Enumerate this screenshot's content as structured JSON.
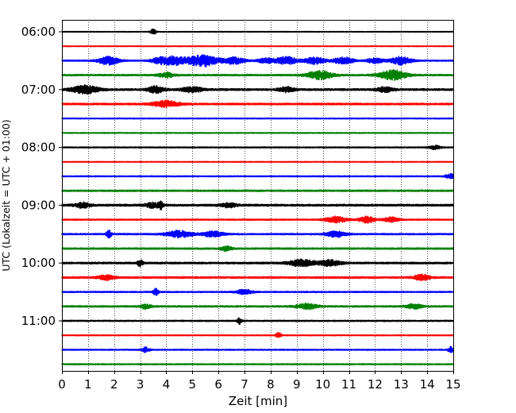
{
  "chart_data": {
    "type": "line",
    "title": "",
    "xlabel": "Zeit  [min]",
    "ylabel": "UTC (Lokalzeit = UTC + 01:00)",
    "xlim": [
      0,
      15
    ],
    "x_ticks": [
      "0",
      "1",
      "2",
      "3",
      "4",
      "5",
      "6",
      "7",
      "8",
      "9",
      "10",
      "11",
      "12",
      "13",
      "14",
      "15"
    ],
    "y_tick_labels": [
      "06:00",
      "07:00",
      "08:00",
      "09:00",
      "10:00",
      "11:00"
    ],
    "trace_interval_minutes": 15,
    "trace_start": "06:00",
    "trace_count": 24,
    "color_cycle": [
      "#000000",
      "#ff0000",
      "#0000ff",
      "#008000"
    ],
    "grid": {
      "x": true,
      "style": "dotted"
    },
    "traces": [
      {
        "time": "06:00",
        "color": "#000000",
        "noise": 0.5,
        "events": [
          {
            "t": 3.5,
            "amp": 3.5,
            "dur": 0.1
          }
        ]
      },
      {
        "time": "06:15",
        "color": "#ff0000",
        "noise": 0.5,
        "events": []
      },
      {
        "time": "06:30",
        "color": "#0000ff",
        "noise": 0.8,
        "events": [
          {
            "t": 1.8,
            "amp": 5,
            "dur": 0.4
          },
          {
            "t": 3.7,
            "amp": 3,
            "dur": 0.3
          },
          {
            "t": 4.3,
            "amp": 5,
            "dur": 0.5
          },
          {
            "t": 5.4,
            "amp": 7,
            "dur": 0.6
          },
          {
            "t": 6.6,
            "amp": 4,
            "dur": 0.4
          },
          {
            "t": 7.8,
            "amp": 3,
            "dur": 0.3
          },
          {
            "t": 8.6,
            "amp": 5,
            "dur": 0.4
          },
          {
            "t": 9.7,
            "amp": 4,
            "dur": 0.4
          },
          {
            "t": 10.8,
            "amp": 4,
            "dur": 0.4
          },
          {
            "t": 12.0,
            "amp": 3,
            "dur": 0.3
          },
          {
            "t": 13.0,
            "amp": 5,
            "dur": 0.4
          }
        ]
      },
      {
        "time": "06:45",
        "color": "#008000",
        "noise": 1.0,
        "events": [
          {
            "t": 4.0,
            "amp": 3,
            "dur": 0.3
          },
          {
            "t": 9.9,
            "amp": 5,
            "dur": 0.5
          },
          {
            "t": 12.7,
            "amp": 6,
            "dur": 0.5
          }
        ]
      },
      {
        "time": "07:00",
        "color": "#000000",
        "noise": 1.2,
        "events": [
          {
            "t": 0.9,
            "amp": 5,
            "dur": 0.5
          },
          {
            "t": 3.6,
            "amp": 4,
            "dur": 0.3
          },
          {
            "t": 5.0,
            "amp": 3,
            "dur": 0.4
          },
          {
            "t": 8.6,
            "amp": 3,
            "dur": 0.3
          },
          {
            "t": 12.4,
            "amp": 3,
            "dur": 0.3
          }
        ]
      },
      {
        "time": "07:15",
        "color": "#ff0000",
        "noise": 1.1,
        "events": [
          {
            "t": 4.0,
            "amp": 4,
            "dur": 0.5
          }
        ]
      },
      {
        "time": "07:30",
        "color": "#0000ff",
        "noise": 0.6,
        "events": []
      },
      {
        "time": "07:45",
        "color": "#008000",
        "noise": 0.6,
        "events": []
      },
      {
        "time": "08:00",
        "color": "#000000",
        "noise": 0.7,
        "events": [
          {
            "t": 14.3,
            "amp": 2.5,
            "dur": 0.2
          }
        ]
      },
      {
        "time": "08:15",
        "color": "#ff0000",
        "noise": 0.5,
        "events": []
      },
      {
        "time": "08:30",
        "color": "#0000ff",
        "noise": 0.7,
        "events": [
          {
            "t": 14.9,
            "amp": 3,
            "dur": 0.2
          }
        ]
      },
      {
        "time": "08:45",
        "color": "#008000",
        "noise": 1.0,
        "events": []
      },
      {
        "time": "09:00",
        "color": "#000000",
        "noise": 1.2,
        "events": [
          {
            "t": 0.8,
            "amp": 3,
            "dur": 0.3
          },
          {
            "t": 3.5,
            "amp": 3,
            "dur": 0.3
          },
          {
            "t": 3.8,
            "amp": 4.5,
            "dur": 0.08
          },
          {
            "t": 6.4,
            "amp": 2.5,
            "dur": 0.3
          }
        ]
      },
      {
        "time": "09:15",
        "color": "#ff0000",
        "noise": 0.8,
        "events": [
          {
            "t": 10.5,
            "amp": 4,
            "dur": 0.4
          },
          {
            "t": 11.7,
            "amp": 4,
            "dur": 0.3
          },
          {
            "t": 12.6,
            "amp": 3,
            "dur": 0.3
          }
        ]
      },
      {
        "time": "09:30",
        "color": "#0000ff",
        "noise": 0.9,
        "events": [
          {
            "t": 1.8,
            "amp": 4.5,
            "dur": 0.1
          },
          {
            "t": 4.5,
            "amp": 4,
            "dur": 0.5
          },
          {
            "t": 5.8,
            "amp": 3.5,
            "dur": 0.4
          },
          {
            "t": 10.5,
            "amp": 3.5,
            "dur": 0.4
          }
        ]
      },
      {
        "time": "09:45",
        "color": "#008000",
        "noise": 1.0,
        "events": [
          {
            "t": 6.3,
            "amp": 3,
            "dur": 0.2
          }
        ]
      },
      {
        "time": "10:00",
        "color": "#000000",
        "noise": 1.1,
        "events": [
          {
            "t": 3.0,
            "amp": 4,
            "dur": 0.1
          },
          {
            "t": 9.2,
            "amp": 4,
            "dur": 0.5
          },
          {
            "t": 10.3,
            "amp": 3.5,
            "dur": 0.4
          }
        ]
      },
      {
        "time": "10:15",
        "color": "#ff0000",
        "noise": 1.1,
        "events": [
          {
            "t": 1.7,
            "amp": 3,
            "dur": 0.3
          },
          {
            "t": 13.8,
            "amp": 3.5,
            "dur": 0.3
          }
        ]
      },
      {
        "time": "10:30",
        "color": "#0000ff",
        "noise": 0.8,
        "events": [
          {
            "t": 3.6,
            "amp": 4,
            "dur": 0.1
          },
          {
            "t": 7.0,
            "amp": 3,
            "dur": 0.3
          }
        ]
      },
      {
        "time": "10:45",
        "color": "#008000",
        "noise": 1.0,
        "events": [
          {
            "t": 3.2,
            "amp": 3,
            "dur": 0.2
          },
          {
            "t": 9.4,
            "amp": 3.5,
            "dur": 0.4
          },
          {
            "t": 13.5,
            "amp": 3,
            "dur": 0.3
          }
        ]
      },
      {
        "time": "11:00",
        "color": "#000000",
        "noise": 0.8,
        "events": [
          {
            "t": 6.8,
            "amp": 4,
            "dur": 0.08
          }
        ]
      },
      {
        "time": "11:15",
        "color": "#ff0000",
        "noise": 0.6,
        "events": [
          {
            "t": 8.3,
            "amp": 3.5,
            "dur": 0.1
          }
        ]
      },
      {
        "time": "11:30",
        "color": "#0000ff",
        "noise": 0.7,
        "events": [
          {
            "t": 3.2,
            "amp": 3,
            "dur": 0.15
          },
          {
            "t": 14.9,
            "amp": 3.5,
            "dur": 0.1
          }
        ]
      },
      {
        "time": "11:45",
        "color": "#008000",
        "noise": 0.7,
        "events": []
      }
    ]
  }
}
